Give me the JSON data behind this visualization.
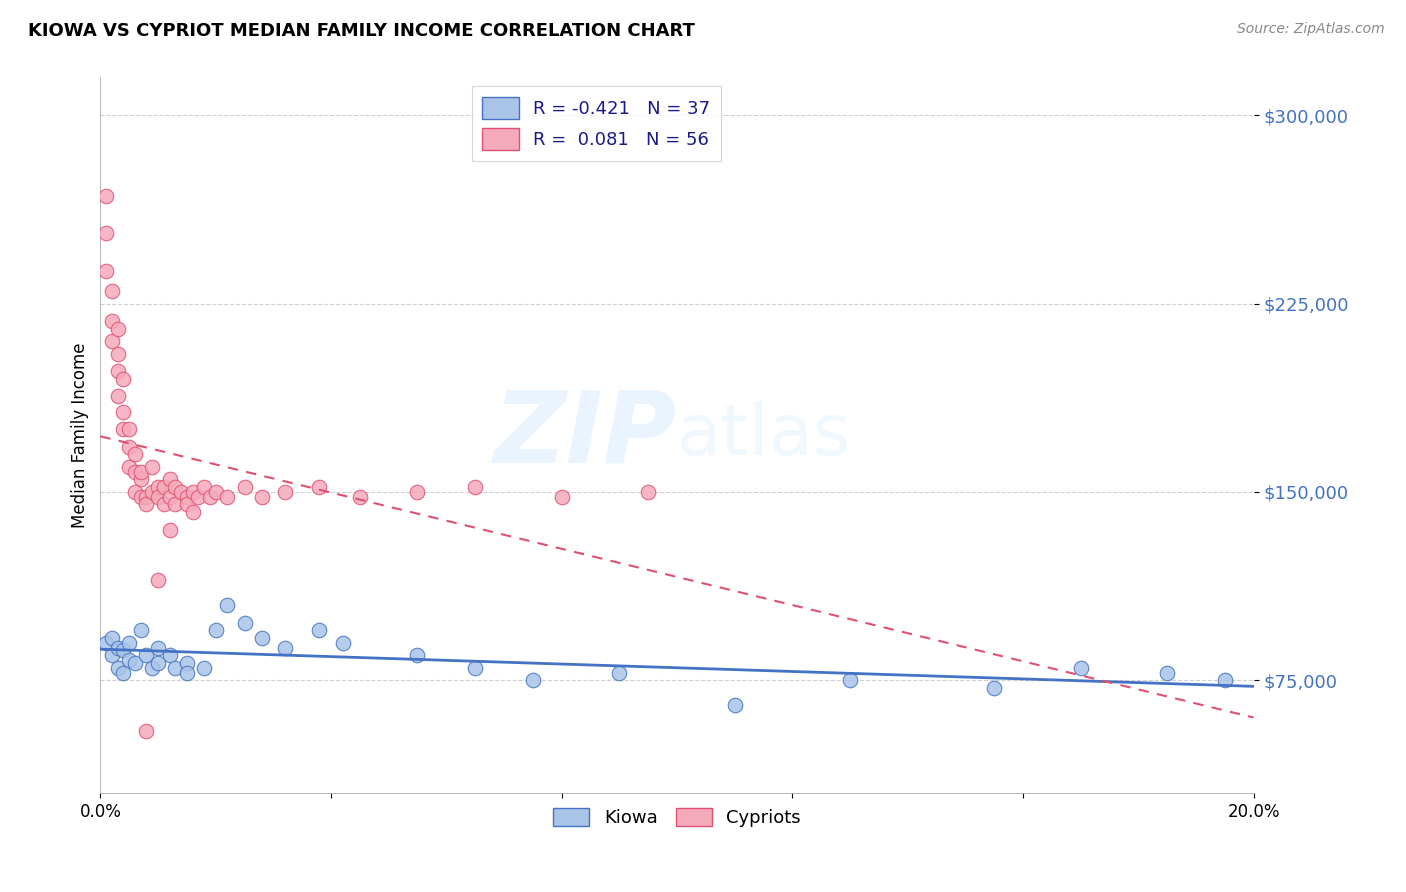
{
  "title": "KIOWA VS CYPRIOT MEDIAN FAMILY INCOME CORRELATION CHART",
  "source": "Source: ZipAtlas.com",
  "ylabel": "Median Family Income",
  "xlabel": "",
  "xlim": [
    0.0,
    0.2
  ],
  "ylim": [
    30000,
    315000
  ],
  "yticks": [
    75000,
    150000,
    225000,
    300000
  ],
  "ytick_labels": [
    "$75,000",
    "$150,000",
    "$225,000",
    "$300,000"
  ],
  "xticks": [
    0.0,
    0.04,
    0.08,
    0.12,
    0.16,
    0.2
  ],
  "xtick_labels": [
    "0.0%",
    "",
    "",
    "",
    "",
    "20.0%"
  ],
  "kiowa_R": -0.421,
  "kiowa_N": 37,
  "cypriot_R": 0.081,
  "cypriot_N": 56,
  "kiowa_color": "#aac4e8",
  "cypriot_color": "#f5aabb",
  "kiowa_line_color": "#4472c4",
  "cypriot_line_color": "#e05070",
  "kiowa_x": [
    0.001,
    0.002,
    0.002,
    0.003,
    0.003,
    0.004,
    0.004,
    0.005,
    0.005,
    0.006,
    0.007,
    0.008,
    0.009,
    0.01,
    0.01,
    0.012,
    0.013,
    0.015,
    0.015,
    0.018,
    0.02,
    0.022,
    0.025,
    0.028,
    0.032,
    0.038,
    0.042,
    0.055,
    0.065,
    0.075,
    0.09,
    0.11,
    0.13,
    0.155,
    0.17,
    0.185,
    0.195
  ],
  "kiowa_y": [
    90000,
    92000,
    85000,
    88000,
    80000,
    87000,
    78000,
    90000,
    83000,
    82000,
    95000,
    85000,
    80000,
    88000,
    82000,
    85000,
    80000,
    82000,
    78000,
    80000,
    95000,
    105000,
    98000,
    92000,
    88000,
    95000,
    90000,
    85000,
    80000,
    75000,
    78000,
    65000,
    75000,
    72000,
    80000,
    78000,
    75000
  ],
  "cypriot_x": [
    0.001,
    0.001,
    0.001,
    0.002,
    0.002,
    0.002,
    0.003,
    0.003,
    0.003,
    0.003,
    0.004,
    0.004,
    0.004,
    0.005,
    0.005,
    0.005,
    0.006,
    0.006,
    0.006,
    0.007,
    0.007,
    0.007,
    0.008,
    0.008,
    0.009,
    0.009,
    0.01,
    0.01,
    0.011,
    0.011,
    0.012,
    0.012,
    0.013,
    0.013,
    0.014,
    0.015,
    0.015,
    0.016,
    0.016,
    0.017,
    0.018,
    0.019,
    0.02,
    0.022,
    0.025,
    0.028,
    0.032,
    0.038,
    0.045,
    0.055,
    0.065,
    0.08,
    0.095,
    0.008,
    0.01,
    0.012
  ],
  "cypriot_y": [
    268000,
    253000,
    238000,
    230000,
    218000,
    210000,
    215000,
    205000,
    198000,
    188000,
    195000,
    182000,
    175000,
    175000,
    168000,
    160000,
    165000,
    158000,
    150000,
    155000,
    148000,
    158000,
    148000,
    145000,
    160000,
    150000,
    152000,
    148000,
    152000,
    145000,
    155000,
    148000,
    152000,
    145000,
    150000,
    148000,
    145000,
    150000,
    142000,
    148000,
    152000,
    148000,
    150000,
    148000,
    152000,
    148000,
    150000,
    152000,
    148000,
    150000,
    152000,
    148000,
    150000,
    55000,
    115000,
    135000
  ]
}
